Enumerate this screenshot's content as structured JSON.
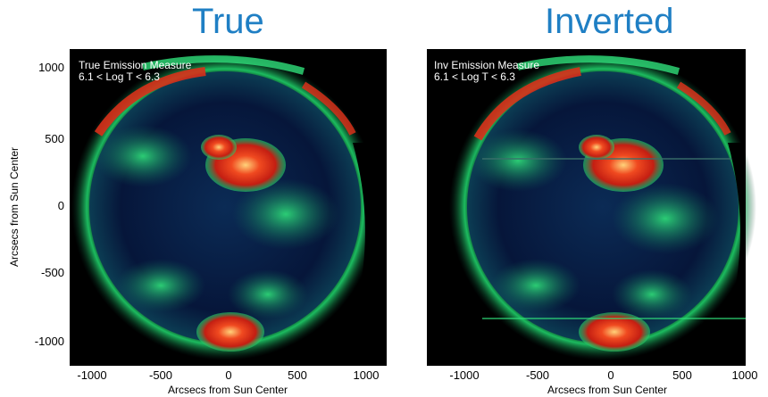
{
  "panels": [
    {
      "title": "True",
      "image_label_1": "True Emission Measure",
      "image_label_2": "6.1 < Log T < 6.3",
      "xlabel": "Arcsecs from Sun Center",
      "ylabel": "Arcsecs from Sun Center",
      "x_ticks": [
        "-1000",
        "-500",
        "0",
        "500",
        "1000"
      ],
      "y_ticks": [
        "1000",
        "500",
        "0",
        "-500",
        "-1000"
      ]
    },
    {
      "title": "Inverted",
      "image_label_1": "Inv Emission Measure",
      "image_label_2": "6.1 < Log T < 6.3",
      "xlabel": "Arcsecs from Sun Center",
      "x_ticks": [
        "-1000",
        "-500",
        "0",
        "500",
        "1000"
      ]
    }
  ],
  "colors": {
    "title": "#1f7fc4",
    "background": "#000000",
    "disk_dark": "#06163a",
    "disk_mid": "#0f4a6a",
    "green": "#1fd16a",
    "red": "#e0321c",
    "hot": "#ffb040"
  }
}
